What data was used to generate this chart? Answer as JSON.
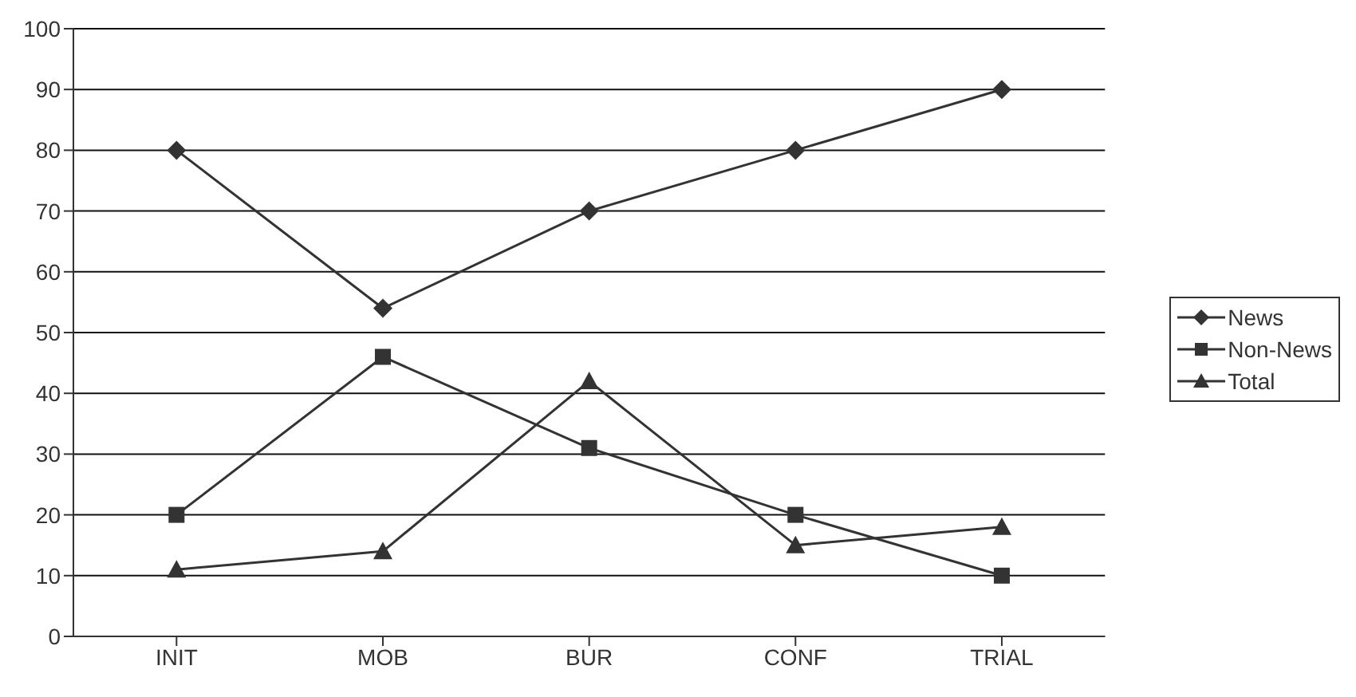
{
  "chart_data": {
    "type": "line",
    "categories": [
      "INIT",
      "MOB",
      "BUR",
      "CONF",
      "TRIAL"
    ],
    "series": [
      {
        "name": "News",
        "color": "#333333",
        "marker": "diamond",
        "values": [
          80,
          54,
          70,
          80,
          90
        ]
      },
      {
        "name": "Non-News",
        "color": "#333333",
        "marker": "square",
        "values": [
          20,
          46,
          31,
          20,
          10
        ]
      },
      {
        "name": "Total",
        "color": "#333333",
        "marker": "triangle",
        "values": [
          11,
          14,
          42,
          15,
          18
        ]
      }
    ],
    "ylim": [
      0,
      100
    ],
    "yticks": [
      0,
      10,
      20,
      30,
      40,
      50,
      60,
      70,
      80,
      90,
      100
    ],
    "grid": "y",
    "legend": "right"
  }
}
